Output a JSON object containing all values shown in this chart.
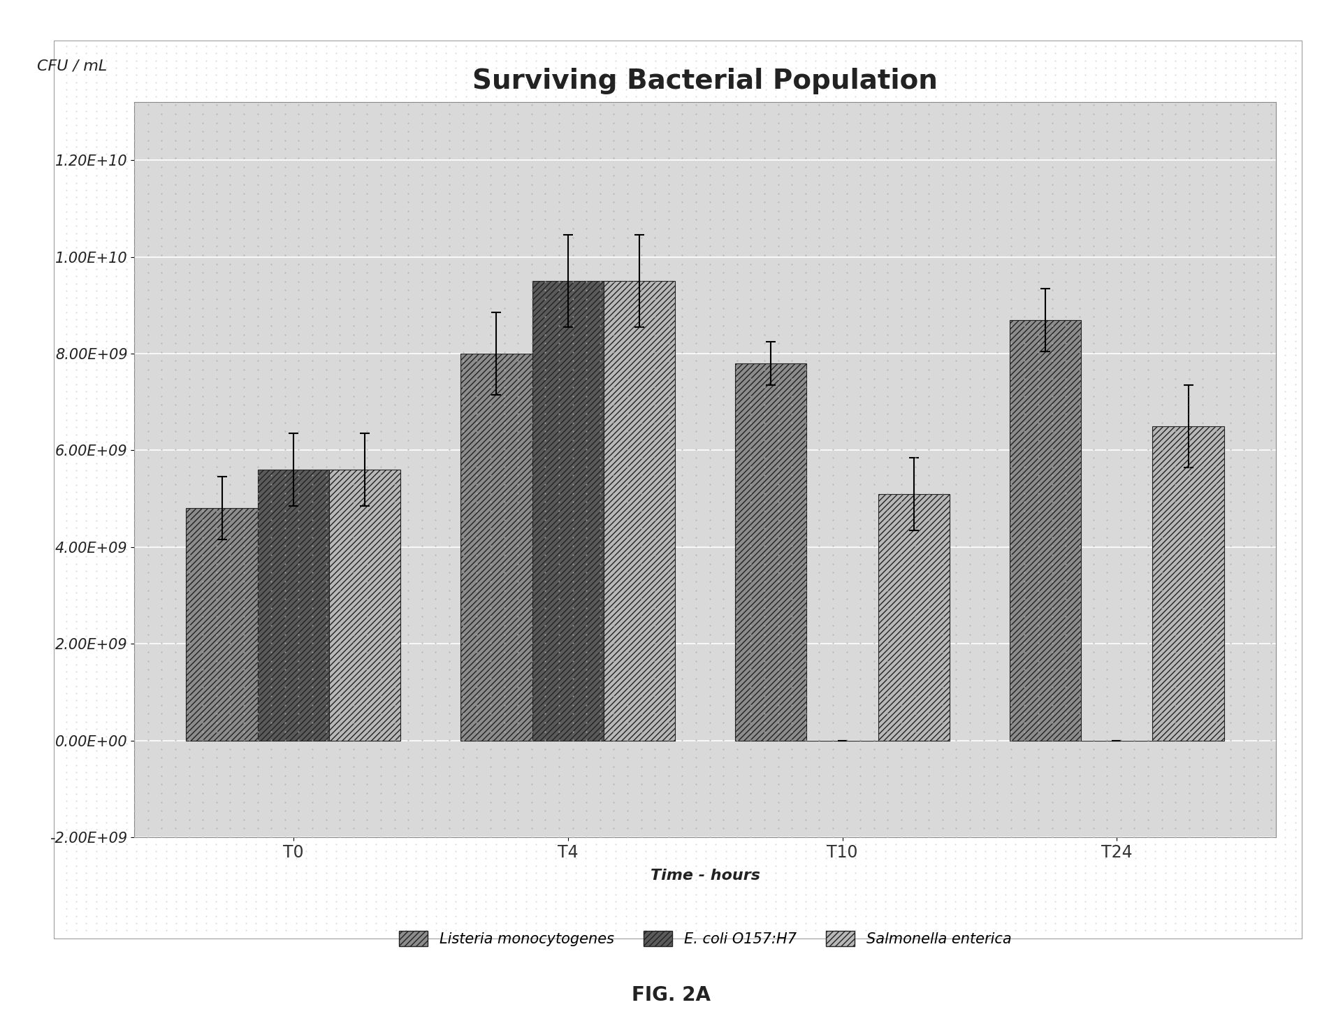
{
  "title": "Surviving Bacterial Population",
  "ylabel": "CFU / mL",
  "xlabel": "Time - hours",
  "groups": [
    "T0",
    "T4",
    "T10",
    "T24"
  ],
  "series_names": [
    "Listeria monocytogenes",
    "E. coli O157:H7",
    "Salmonella enterica"
  ],
  "bar_values": [
    [
      4800000000.0,
      8000000000.0,
      7800000000.0,
      8700000000.0
    ],
    [
      5600000000.0,
      9500000000.0,
      0.0,
      0.0
    ],
    [
      5600000000.0,
      9500000000.0,
      5100000000.0,
      6500000000.0
    ]
  ],
  "bar_errors": [
    [
      650000000.0,
      850000000.0,
      450000000.0,
      650000000.0
    ],
    [
      750000000.0,
      950000000.0,
      0.0,
      0.0
    ],
    [
      750000000.0,
      950000000.0,
      750000000.0,
      850000000.0
    ]
  ],
  "colors": [
    "#8c8c8c",
    "#5a5a5a",
    "#b8b8b8"
  ],
  "hatches": [
    "////",
    "////",
    "////"
  ],
  "ylim": [
    -2000000000.0,
    13200000000.0
  ],
  "yticks": [
    -2000000000.0,
    0.0,
    2000000000.0,
    4000000000.0,
    6000000000.0,
    8000000000.0,
    10000000000.0,
    12000000000.0
  ],
  "ytick_labels": [
    "-2.00E+09",
    "0.00E+00",
    "2.00E+09",
    "4.00E+09",
    "6.00E+09",
    "8.00E+09",
    "1.00E+10",
    "1.20E+10"
  ],
  "bar_width": 0.26,
  "outer_bg_color": "#f0f0f0",
  "inner_bg_color": "#d9d9d9",
  "fig_bg_color": "#ffffff",
  "title_fontsize": 28,
  "axis_label_fontsize": 16,
  "tick_fontsize": 15,
  "legend_fontsize": 15,
  "fig_caption": "FIG. 2A",
  "figwidth": 19.22,
  "figheight": 14.61,
  "dpi": 100
}
